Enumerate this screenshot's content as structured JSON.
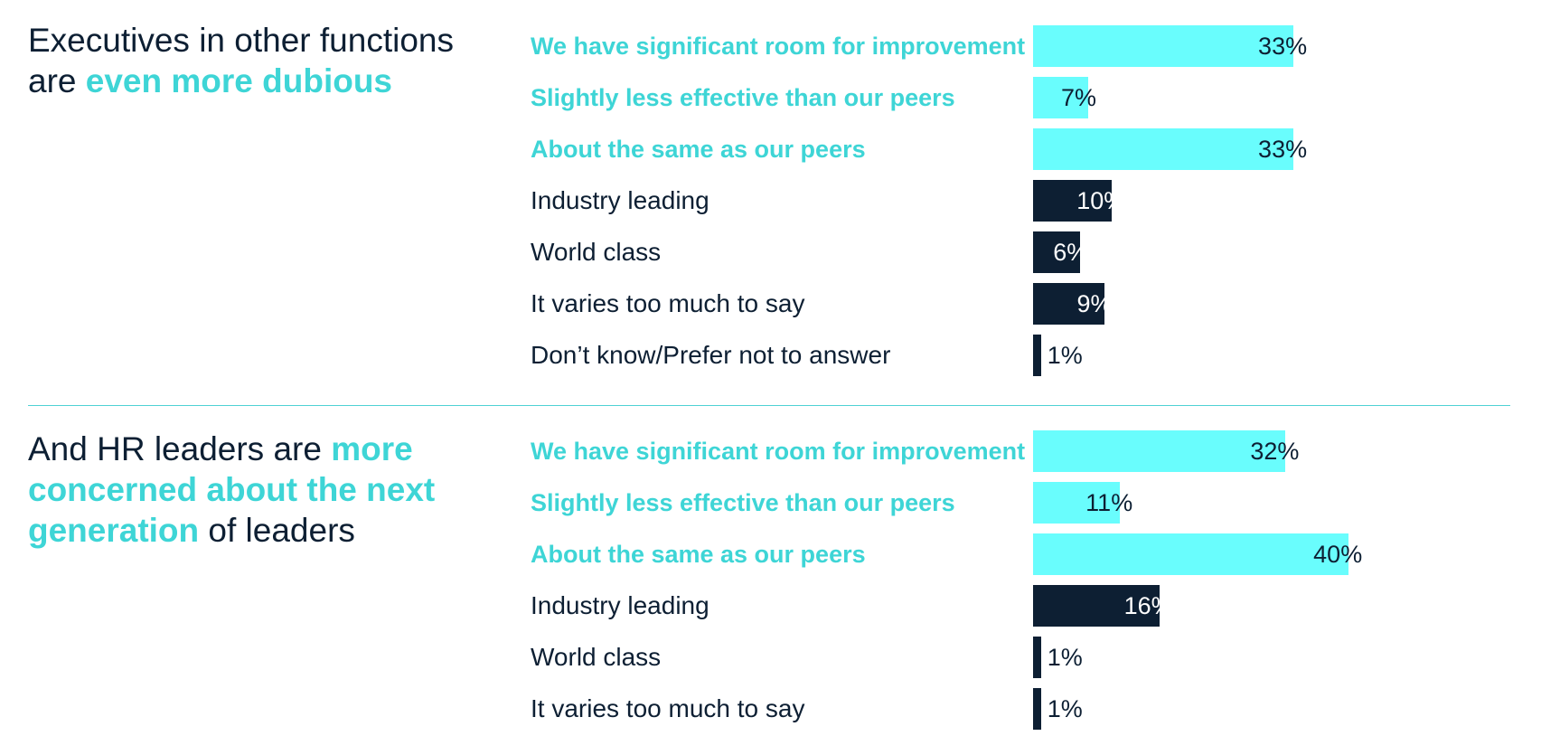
{
  "chart_data": [
    {
      "type": "bar",
      "orientation": "horizontal",
      "title_parts": [
        {
          "text": "Executives in other functions are ",
          "highlight": false
        },
        {
          "text": "even more dubious",
          "highlight": true
        }
      ],
      "categories": [
        "We have significant room for improvement",
        "Slightly less effective than our peers",
        "About the same as our peers",
        "Industry leading",
        "World class",
        "It varies too much to say",
        "Don’t know/Prefer not to answer"
      ],
      "values": [
        33,
        7,
        33,
        10,
        6,
        9,
        1
      ],
      "value_labels": [
        "33%",
        "7%",
        "33%",
        "10%",
        "6%",
        "9%",
        "1%"
      ],
      "category_group": [
        "negative",
        "negative",
        "negative",
        "positive",
        "positive",
        "positive",
        "positive"
      ],
      "xlim": [
        0,
        100
      ],
      "grid": false
    },
    {
      "type": "bar",
      "orientation": "horizontal",
      "title_parts": [
        {
          "text": "And HR leaders are ",
          "highlight": false
        },
        {
          "text": "more concerned about the next generation",
          "highlight": true
        },
        {
          "text": " of leaders",
          "highlight": false
        }
      ],
      "categories": [
        "We have significant room for improvement",
        "Slightly less effective than our peers",
        "About the same as our peers",
        "Industry leading",
        "World class",
        "It varies too much to say"
      ],
      "values": [
        32,
        11,
        40,
        16,
        1,
        1
      ],
      "value_labels": [
        "32%",
        "11%",
        "40%",
        "16%",
        "1%",
        "1%"
      ],
      "category_group": [
        "negative",
        "negative",
        "negative",
        "positive",
        "positive",
        "positive"
      ],
      "xlim": [
        0,
        100
      ],
      "grid": false
    }
  ],
  "colors": {
    "negative_bar": "#69fdfd",
    "positive_bar": "#0d1f33",
    "highlight_text": "#3ed5d6",
    "body_text": "#0d1f33",
    "divider": "#4fd2d4"
  }
}
